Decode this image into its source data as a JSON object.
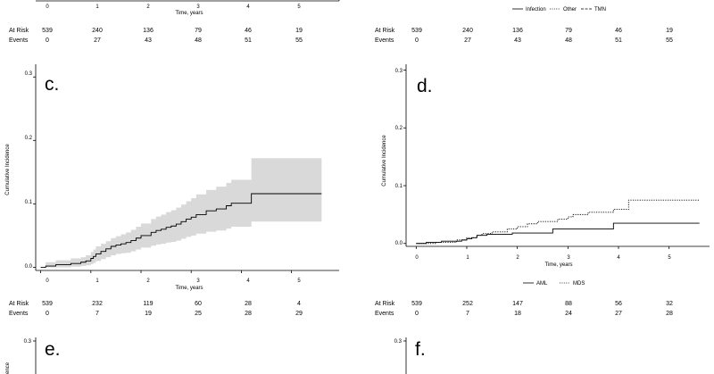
{
  "colors": {
    "ci_band": "#d9d9d9",
    "line": "#000000",
    "axis": "#000000"
  },
  "panels": {
    "a_fragment": {
      "xlabel": "Time, years",
      "x_ticks": [
        "0",
        "1",
        "2",
        "3",
        "4",
        "5"
      ],
      "at_risk_label": "At Risk",
      "events_label": "Events",
      "at_risk": [
        "539",
        "240",
        "136",
        "79",
        "46",
        "19"
      ],
      "events": [
        "0",
        "27",
        "43",
        "48",
        "51",
        "55"
      ]
    },
    "b_fragment": {
      "legend": [
        {
          "name": "Infection",
          "style": "solid"
        },
        {
          "name": "Other",
          "style": "dotted"
        },
        {
          "name": "TMN",
          "style": "dashed"
        }
      ],
      "at_risk_label": "At Risk",
      "events_label": "Events",
      "at_risk": [
        "539",
        "240",
        "136",
        "79",
        "46",
        "19"
      ],
      "events": [
        "0",
        "27",
        "43",
        "48",
        "51",
        "55"
      ]
    },
    "c": {
      "label": "c.",
      "ylabel": "Cumulative Incidence",
      "xlabel": "Time, years",
      "y_ticks": [
        "0.0",
        "0.1",
        "0.2",
        "0.3"
      ],
      "x_ticks": [
        "0",
        "1",
        "2",
        "3",
        "4",
        "5"
      ],
      "at_risk_label": "At Risk",
      "events_label": "Events",
      "at_risk": [
        "539",
        "232",
        "119",
        "60",
        "28",
        "4"
      ],
      "events": [
        "0",
        "7",
        "19",
        "25",
        "28",
        "29"
      ]
    },
    "d": {
      "label": "d.",
      "ylabel": "Cumulative Incidence",
      "xlabel": "Time, years",
      "y_ticks": [
        "0.0",
        "0.1",
        "0.2",
        "0.3"
      ],
      "x_ticks": [
        "0",
        "1",
        "2",
        "3",
        "4",
        "5"
      ],
      "legend": [
        {
          "name": "AML",
          "style": "solid"
        },
        {
          "name": "MDS",
          "style": "dotted"
        }
      ],
      "at_risk_label": "At Risk",
      "events_label": "Events",
      "at_risk": [
        "539",
        "252",
        "147",
        "88",
        "56",
        "32"
      ],
      "events": [
        "0",
        "7",
        "18",
        "24",
        "27",
        "28"
      ]
    },
    "e": {
      "label": "e.",
      "y_top_tick": "0.3",
      "ylabel_fragment": "ence"
    },
    "f": {
      "label": "f.",
      "y_top_tick": "0.3"
    }
  },
  "chart_data": [
    {
      "panel": "c",
      "type": "line",
      "title": "",
      "xlabel": "Time, years",
      "ylabel": "Cumulative Incidence",
      "xlim": [
        -0.1,
        5.95
      ],
      "ylim": [
        -0.005,
        0.32
      ],
      "series": [
        {
          "name": "Cumulative incidence",
          "step": true,
          "x": [
            0,
            0.1,
            0.3,
            0.6,
            0.8,
            0.9,
            1.0,
            1.05,
            1.1,
            1.2,
            1.3,
            1.4,
            1.5,
            1.6,
            1.7,
            1.8,
            1.9,
            2.0,
            2.2,
            2.3,
            2.4,
            2.5,
            2.6,
            2.7,
            2.8,
            2.9,
            3.0,
            3.1,
            3.3,
            3.5,
            3.7,
            3.8,
            4.2,
            5.6
          ],
          "y": [
            0,
            0.002,
            0.004,
            0.006,
            0.008,
            0.01,
            0.014,
            0.017,
            0.021,
            0.025,
            0.029,
            0.033,
            0.035,
            0.037,
            0.039,
            0.042,
            0.046,
            0.05,
            0.055,
            0.058,
            0.06,
            0.063,
            0.065,
            0.068,
            0.072,
            0.076,
            0.079,
            0.083,
            0.089,
            0.092,
            0.097,
            0.101,
            0.116,
            0.116
          ],
          "ci_lower": [
            0,
            0,
            0,
            0.001,
            0.002,
            0.003,
            0.005,
            0.007,
            0.01,
            0.013,
            0.016,
            0.019,
            0.021,
            0.022,
            0.023,
            0.025,
            0.028,
            0.031,
            0.034,
            0.036,
            0.037,
            0.039,
            0.04,
            0.042,
            0.045,
            0.048,
            0.05,
            0.053,
            0.056,
            0.058,
            0.061,
            0.064,
            0.072,
            0.072
          ],
          "ci_upper": [
            0,
            0.008,
            0.011,
            0.014,
            0.016,
            0.019,
            0.024,
            0.028,
            0.033,
            0.037,
            0.041,
            0.046,
            0.049,
            0.052,
            0.055,
            0.059,
            0.064,
            0.069,
            0.076,
            0.08,
            0.083,
            0.087,
            0.09,
            0.094,
            0.099,
            0.104,
            0.109,
            0.115,
            0.122,
            0.127,
            0.133,
            0.138,
            0.172,
            0.172
          ]
        }
      ]
    },
    {
      "panel": "d",
      "type": "line",
      "title": "",
      "xlabel": "Time, years",
      "ylabel": "Cumulative Incidence",
      "xlim": [
        -0.2,
        5.8
      ],
      "ylim": [
        -0.005,
        0.31
      ],
      "series": [
        {
          "name": "AML",
          "style": "solid",
          "step": true,
          "x": [
            0,
            0.2,
            0.5,
            0.9,
            1.0,
            1.1,
            1.2,
            1.4,
            1.9,
            2.7,
            3.9,
            5.6
          ],
          "y": [
            0,
            0.002,
            0.004,
            0.006,
            0.008,
            0.01,
            0.014,
            0.016,
            0.018,
            0.025,
            0.035,
            0.035
          ]
        },
        {
          "name": "MDS",
          "style": "dotted",
          "step": true,
          "x": [
            0,
            0.4,
            0.8,
            1.0,
            1.2,
            1.3,
            1.5,
            1.8,
            2.0,
            2.2,
            2.4,
            2.8,
            3.0,
            3.1,
            3.4,
            3.9,
            4.2,
            5.6
          ],
          "y": [
            0,
            0.002,
            0.006,
            0.01,
            0.014,
            0.017,
            0.02,
            0.025,
            0.029,
            0.034,
            0.038,
            0.042,
            0.046,
            0.05,
            0.054,
            0.059,
            0.075,
            0.075
          ]
        }
      ]
    }
  ]
}
